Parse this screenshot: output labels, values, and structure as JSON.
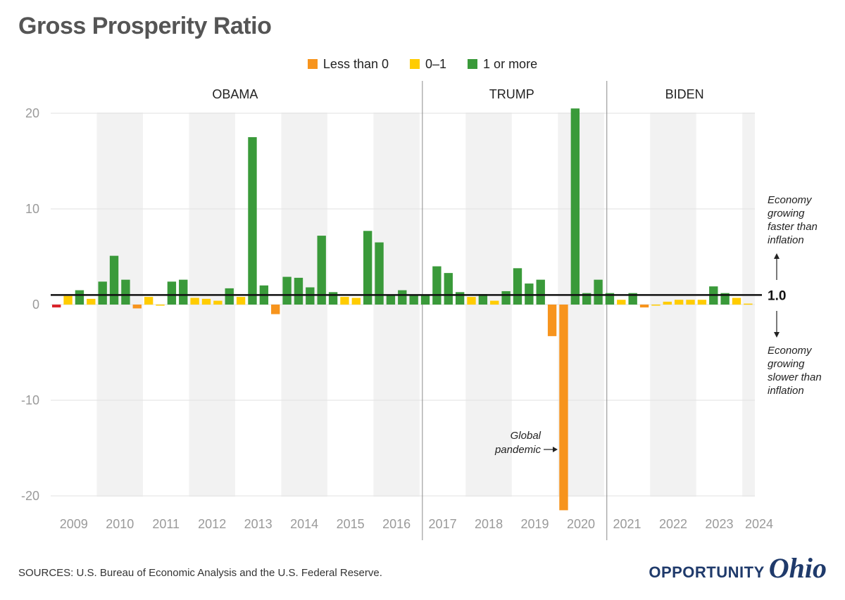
{
  "title": "Gross Prosperity Ratio",
  "legend": [
    {
      "label": "Less than 0",
      "color": "#f7941d"
    },
    {
      "label": "0–1",
      "color": "#ffcc00"
    },
    {
      "label": "1 or more",
      "color": "#3a9a3a"
    }
  ],
  "eras": [
    {
      "label": "OBAMA",
      "start": 0,
      "end": 32
    },
    {
      "label": "TRUMP",
      "start": 32,
      "end": 48
    },
    {
      "label": "BIDEN",
      "start": 48,
      "end": 61
    }
  ],
  "reference_line": {
    "value": 1.0,
    "label": "1.0"
  },
  "annotations": {
    "above": [
      "Economy",
      "growing",
      "faster than",
      "inflation"
    ],
    "below": [
      "Economy",
      "growing",
      "slower than",
      "inflation"
    ],
    "pandemic": [
      "Global",
      "pandemic"
    ]
  },
  "source": "SOURCES: U.S. Bureau of Economic Analysis and the U.S. Federal Reserve.",
  "brand": {
    "word": "OPPORTUNITY",
    "script": "Ohio"
  },
  "chart_data": {
    "type": "bar",
    "title": "Gross Prosperity Ratio",
    "xlabel": "",
    "ylabel": "",
    "ylim": [
      -22,
      21
    ],
    "yticks": [
      20,
      10,
      0,
      -10,
      -20
    ],
    "grid": true,
    "legend_position": "top-center",
    "x_tick_labels": [
      "2009",
      "2010",
      "2011",
      "2012",
      "2013",
      "2014",
      "2015",
      "2016",
      "2017",
      "2018",
      "2019",
      "2020",
      "2021",
      "2022",
      "2023",
      "2024"
    ],
    "categories": [
      "2009 Q1",
      "2009 Q2",
      "2009 Q3",
      "2009 Q4",
      "2010 Q1",
      "2010 Q2",
      "2010 Q3",
      "2010 Q4",
      "2011 Q1",
      "2011 Q2",
      "2011 Q3",
      "2011 Q4",
      "2012 Q1",
      "2012 Q2",
      "2012 Q3",
      "2012 Q4",
      "2013 Q1",
      "2013 Q2",
      "2013 Q3",
      "2013 Q4",
      "2014 Q1",
      "2014 Q2",
      "2014 Q3",
      "2014 Q4",
      "2015 Q1",
      "2015 Q2",
      "2015 Q3",
      "2015 Q4",
      "2016 Q1",
      "2016 Q2",
      "2016 Q3",
      "2016 Q4",
      "2017 Q1",
      "2017 Q2",
      "2017 Q3",
      "2017 Q4",
      "2018 Q1",
      "2018 Q2",
      "2018 Q3",
      "2018 Q4",
      "2019 Q1",
      "2019 Q2",
      "2019 Q3",
      "2019 Q4",
      "2020 Q1",
      "2020 Q2",
      "2020 Q3",
      "2020 Q4",
      "2021 Q1",
      "2021 Q2",
      "2021 Q3",
      "2021 Q4",
      "2022 Q1",
      "2022 Q2",
      "2022 Q3",
      "2022 Q4",
      "2023 Q1",
      "2023 Q2",
      "2023 Q3",
      "2023 Q4",
      "2024 Q1"
    ],
    "values": [
      -0.3,
      0.9,
      1.5,
      0.6,
      2.4,
      5.1,
      2.6,
      -0.4,
      0.8,
      0.0,
      2.4,
      2.6,
      0.7,
      0.6,
      0.4,
      1.7,
      0.8,
      17.5,
      2.0,
      -1.0,
      2.9,
      2.8,
      1.8,
      7.2,
      1.3,
      0.8,
      0.7,
      7.7,
      6.5,
      1.0,
      1.5,
      1.0,
      1.0,
      4.0,
      3.3,
      1.3,
      0.8,
      1.1,
      0.4,
      1.4,
      3.8,
      2.2,
      2.6,
      -3.3,
      -21.5,
      20.5,
      1.2,
      2.6,
      1.2,
      0.5,
      1.2,
      -0.3,
      0.0,
      0.3,
      0.5,
      0.5,
      0.5,
      1.9,
      1.2,
      0.7,
      0.1
    ],
    "special_colors": {
      "0": "#d9232a"
    }
  }
}
